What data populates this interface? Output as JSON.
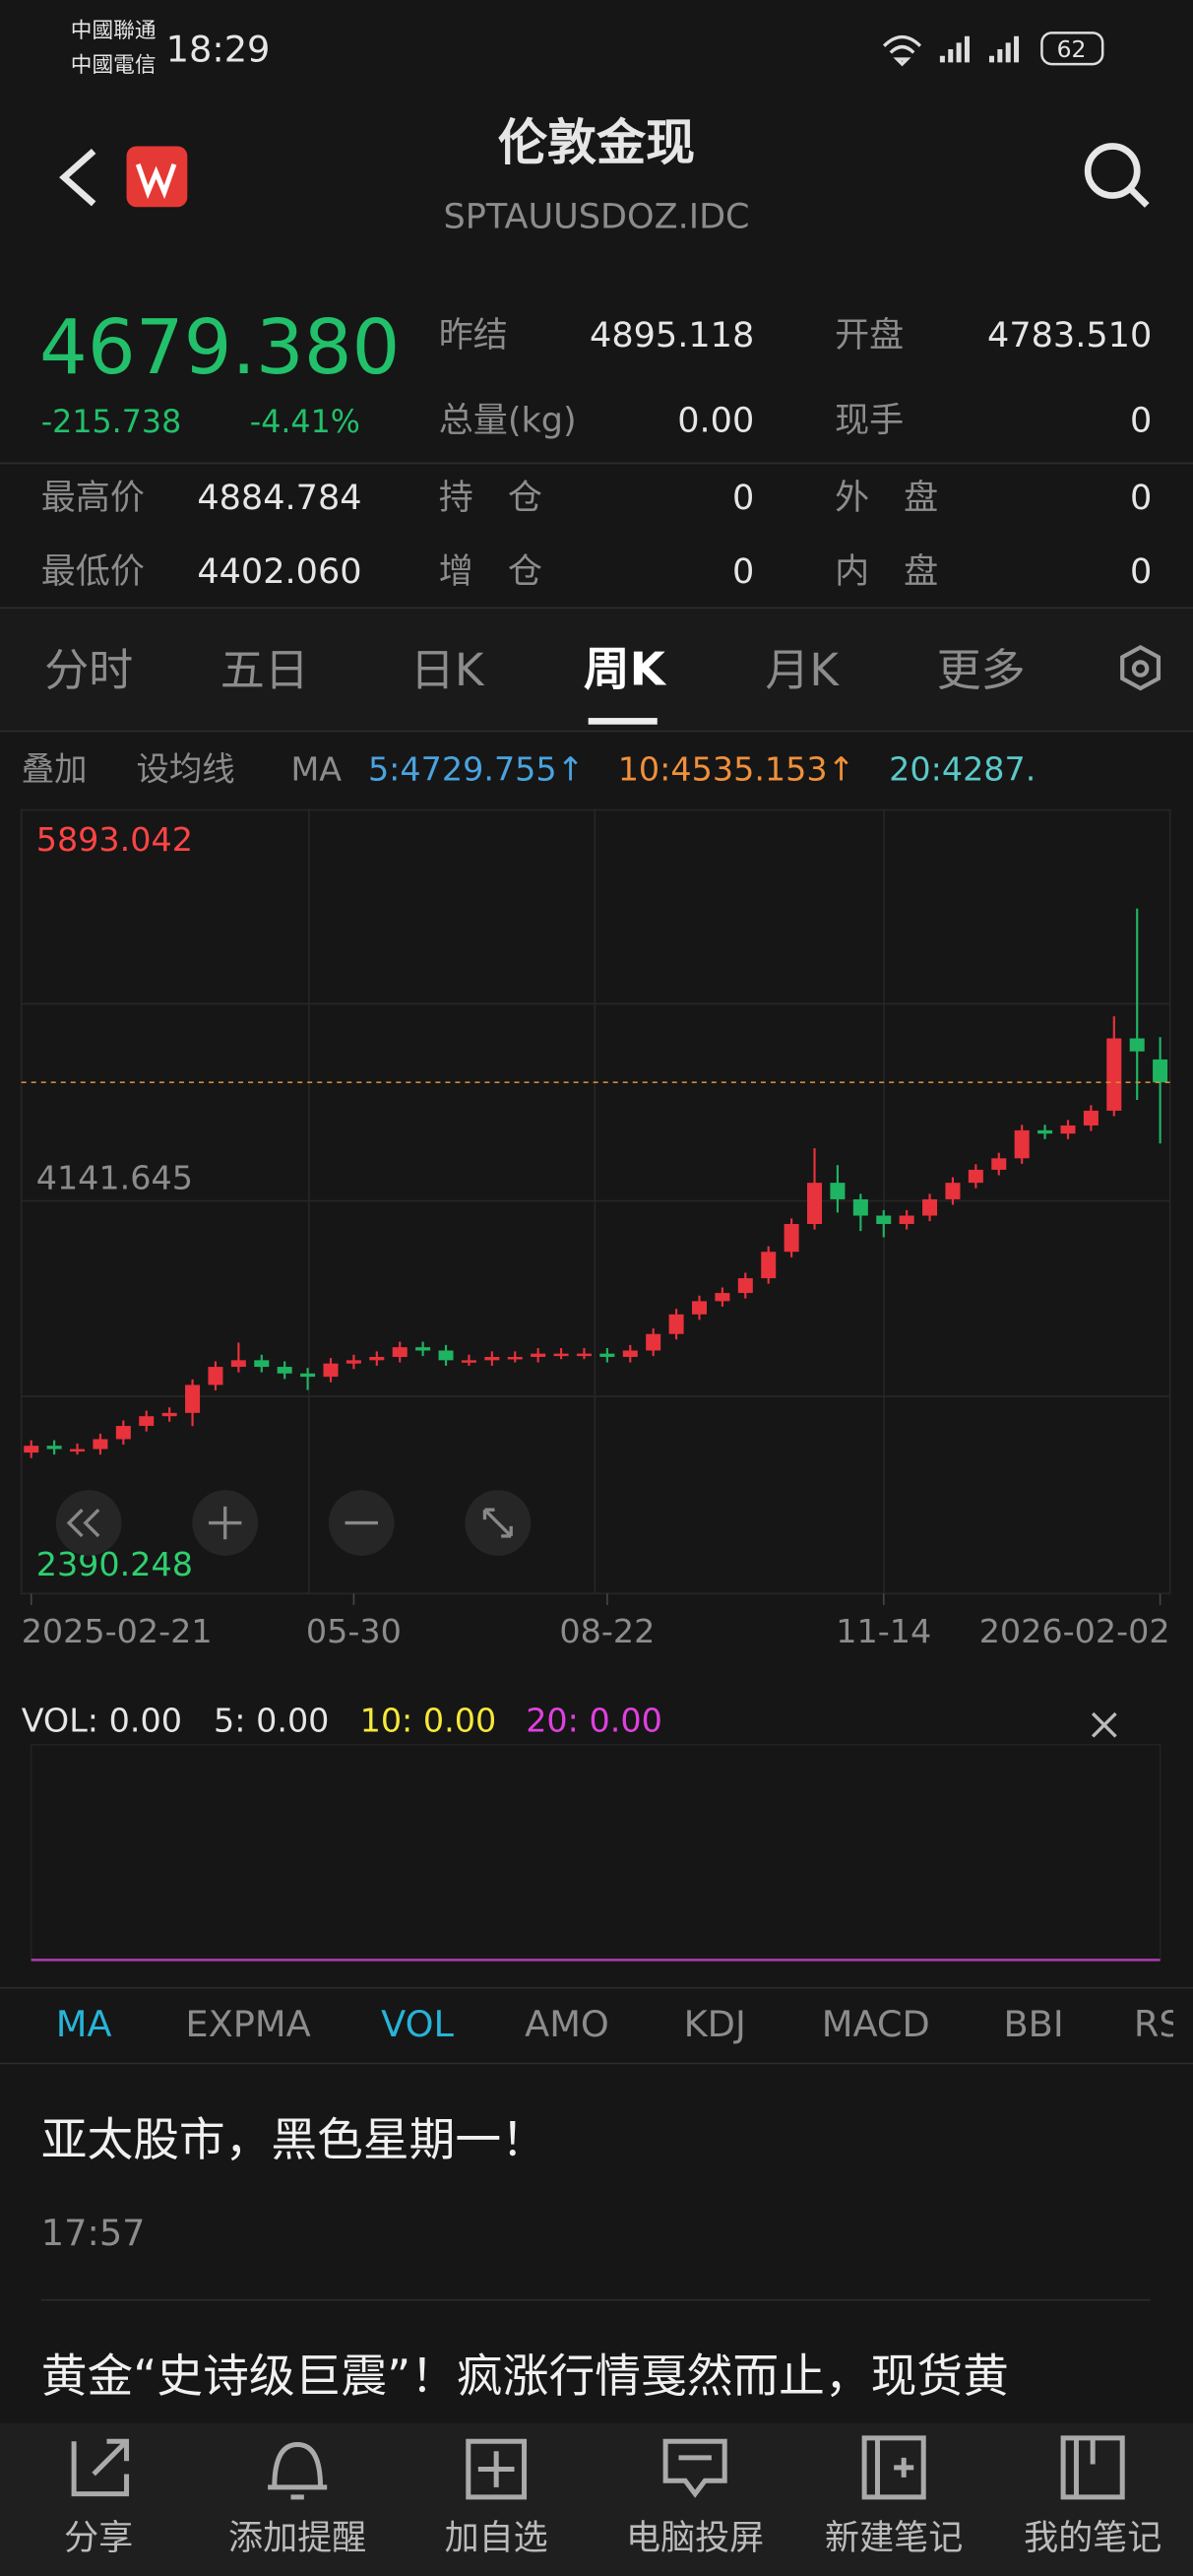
{
  "status_bar": {
    "carrier_1": "中國聯通",
    "carrier_2": "中國電信",
    "time": "18:29",
    "battery": "62"
  },
  "header": {
    "title": "伦敦金现",
    "code": "SPTAUUSDOZ.IDC"
  },
  "quote": {
    "price": "4679.380",
    "change": "-215.738",
    "change_pct": "-4.41%",
    "stats": [
      {
        "label": "昨结",
        "value": "4895.118"
      },
      {
        "label": "开盘",
        "value": "4783.510"
      },
      {
        "label": "总量(kg)",
        "value": "0.00"
      },
      {
        "label": "现手",
        "value": "0"
      },
      {
        "label": "最高价",
        "value": "4884.784"
      },
      {
        "label": "持　仓",
        "value": "0"
      },
      {
        "label": "外　盘",
        "value": "0"
      },
      {
        "label": "最低价",
        "value": "4402.060"
      },
      {
        "label": "增　仓",
        "value": "0"
      },
      {
        "label": "内　盘",
        "value": "0"
      }
    ]
  },
  "period_tabs": [
    "分时",
    "五日",
    "日K",
    "周K",
    "月K",
    "更多"
  ],
  "ma_bar": {
    "overlay": "叠加",
    "set_ma": "设均线",
    "ma": "MA",
    "ma5": "5:4729.755↑",
    "ma10": "10:4535.153↑",
    "ma20": "20:4287."
  },
  "chart_data": {
    "type": "candlestick",
    "categories": [
      "2025-02-21",
      null,
      null,
      null,
      null,
      null,
      null,
      null,
      null,
      null,
      null,
      null,
      null,
      null,
      "05-30",
      null,
      null,
      null,
      null,
      null,
      null,
      null,
      null,
      null,
      null,
      "08-22",
      null,
      null,
      null,
      null,
      null,
      null,
      null,
      null,
      null,
      null,
      null,
      "11-14",
      null,
      null,
      null,
      null,
      null,
      null,
      null,
      null,
      null,
      null,
      null,
      "2026-02-02"
    ],
    "open": [
      3000,
      3031,
      3016,
      3016,
      3061,
      3121,
      3165,
      3180,
      3307,
      3389,
      3419,
      3389,
      3359,
      3344,
      3404,
      3419,
      3434,
      3478,
      3463,
      3419,
      3419,
      3434,
      3434,
      3449,
      3449,
      3449,
      3434,
      3463,
      3538,
      3627,
      3687,
      3724,
      3791,
      3911,
      4037,
      4224,
      4149,
      4075,
      4037,
      4075,
      4149,
      4224,
      4283,
      4335,
      4462,
      4447,
      4484,
      4551,
      4879,
      4783.51
    ],
    "high": [
      3056,
      3056,
      3041,
      3086,
      3146,
      3190,
      3205,
      3332,
      3414,
      3499,
      3444,
      3414,
      3384,
      3429,
      3444,
      3459,
      3503,
      3503,
      3488,
      3444,
      3459,
      3459,
      3474,
      3474,
      3474,
      3474,
      3488,
      3563,
      3652,
      3712,
      3749,
      3816,
      3936,
      4062,
      4381,
      4304,
      4174,
      4100,
      4100,
      4174,
      4249,
      4308,
      4360,
      4487,
      4487,
      4509,
      4576,
      4979,
      5468,
      4884.784
    ],
    "low": [
      2975,
      2991,
      2991,
      2991,
      3036,
      3096,
      3140,
      3120,
      3282,
      3364,
      3364,
      3334,
      3284,
      3319,
      3379,
      3394,
      3409,
      3438,
      3394,
      3394,
      3394,
      3409,
      3409,
      3424,
      3424,
      3409,
      3409,
      3438,
      3513,
      3602,
      3662,
      3699,
      3766,
      3886,
      4012,
      4089,
      4005,
      3977,
      4012,
      4050,
      4124,
      4199,
      4258,
      4310,
      4422,
      4422,
      4459,
      4526,
      4600,
      4402.06
    ],
    "close": [
      3031,
      3016,
      3016,
      3061,
      3121,
      3165,
      3180,
      3307,
      3389,
      3419,
      3389,
      3359,
      3344,
      3404,
      3419,
      3434,
      3478,
      3463,
      3419,
      3419,
      3434,
      3434,
      3449,
      3449,
      3449,
      3434,
      3463,
      3538,
      3627,
      3687,
      3724,
      3791,
      3911,
      4037,
      4224,
      4149,
      4075,
      4037,
      4075,
      4149,
      4224,
      4283,
      4335,
      4462,
      4447,
      4484,
      4551,
      4879,
      4820,
      4679.38
    ],
    "ylim": [
      2390.248,
      5893.042
    ],
    "yticks": [
      2390.248,
      4141.645,
      5893.042
    ],
    "up_color": "#e8323c",
    "down_color": "#1fb462"
  },
  "volume": {
    "vol": "VOL: 0.00",
    "vol5": "5: 0.00",
    "vol10": "10: 0.00",
    "vol20": "20: 0.00"
  },
  "indicator_tabs": [
    "MA",
    "EXPMA",
    "VOL",
    "AMO",
    "KDJ",
    "MACD",
    "BBI",
    "RSI"
  ],
  "news": [
    {
      "headline": "亚太股市，黑色星期一！",
      "time": "17:57"
    },
    {
      "headline": "黄金“史诗级巨震”！疯涨行情戛然而止，现货黄"
    }
  ],
  "toolbar": [
    "分享",
    "添加提醒",
    "加自选",
    "电脑投屏",
    "新建笔记",
    "我的笔记"
  ]
}
